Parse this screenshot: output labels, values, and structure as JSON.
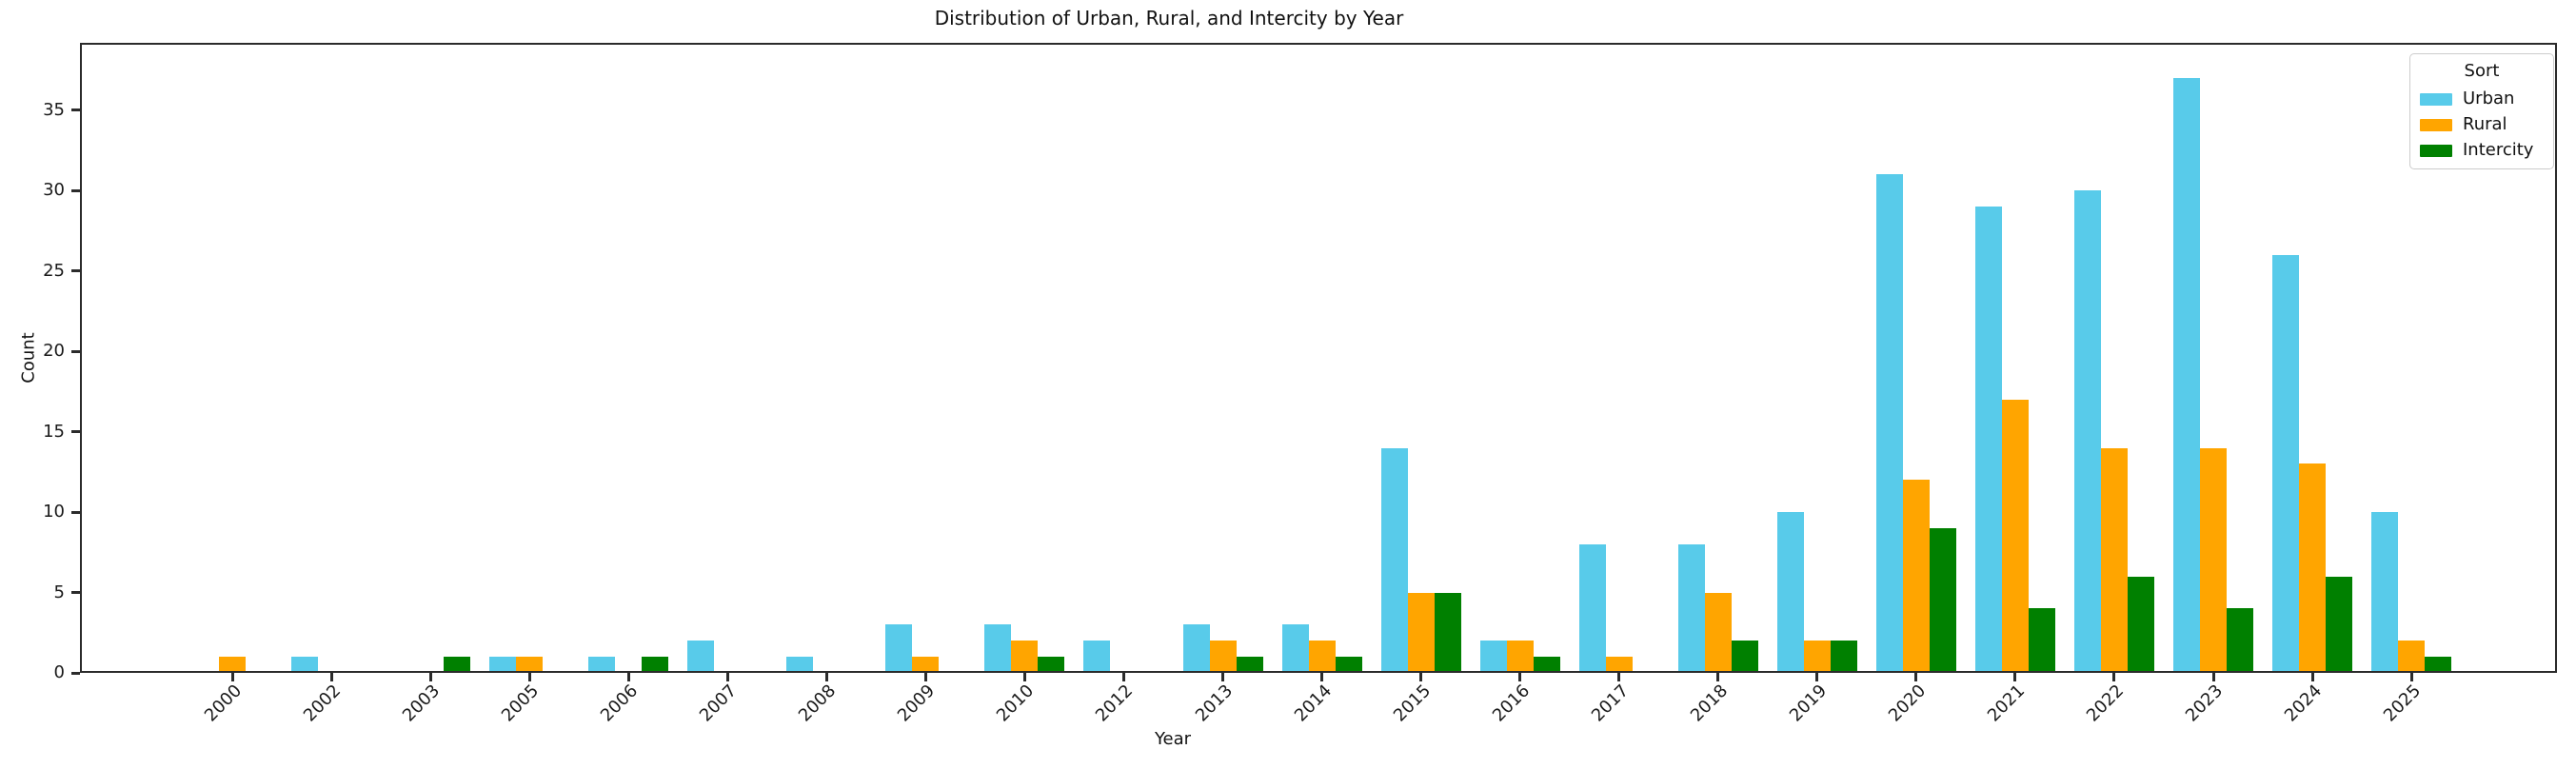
{
  "chart_data": {
    "type": "bar",
    "title": "Distribution of Urban, Rural, and Intercity by Year",
    "xlabel": "Year",
    "ylabel": "Count",
    "legend_title": "Sort",
    "legend_position": "upper right",
    "grid": false,
    "categories": [
      "2000",
      "2002",
      "2003",
      "2005",
      "2006",
      "2007",
      "2008",
      "2009",
      "2010",
      "2012",
      "2013",
      "2014",
      "2015",
      "2016",
      "2017",
      "2018",
      "2019",
      "2020",
      "2021",
      "2022",
      "2023",
      "2024",
      "2025"
    ],
    "series": [
      {
        "name": "Urban",
        "color": "#58CBEA",
        "values": [
          0,
          1,
          0,
          1,
          1,
          2,
          1,
          3,
          3,
          2,
          3,
          3,
          14,
          2,
          8,
          8,
          10,
          31,
          29,
          30,
          37,
          26,
          10
        ]
      },
      {
        "name": "Rural",
        "color": "#FFA500",
        "values": [
          1,
          0,
          0,
          1,
          0,
          0,
          0,
          1,
          2,
          0,
          2,
          2,
          5,
          2,
          1,
          5,
          2,
          12,
          17,
          14,
          14,
          13,
          2
        ]
      },
      {
        "name": "Intercity",
        "color": "#008000",
        "values": [
          0,
          0,
          1,
          0,
          1,
          0,
          0,
          0,
          1,
          0,
          1,
          1,
          5,
          1,
          0,
          2,
          2,
          9,
          4,
          6,
          4,
          6,
          1
        ]
      }
    ],
    "y_ticks": [
      0,
      5,
      10,
      15,
      20,
      25,
      30,
      35
    ],
    "ylim": [
      0,
      39.2
    ],
    "axis_color": "#2b2b2b",
    "background_color": "#ffffff"
  }
}
